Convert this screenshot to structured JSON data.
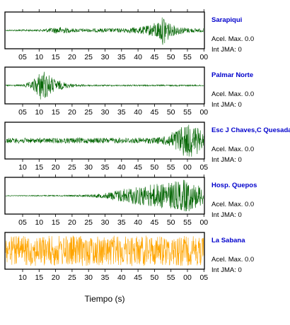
{
  "colors": {
    "trace_default": "#006400",
    "trace_last": "#ffa500",
    "station_name": "#0000cc",
    "frame": "#000000"
  },
  "chart_data": {
    "type": "line",
    "xlabel": "Tiempo (s)",
    "panels": [
      {
        "station": "Sarapiqui",
        "acel_label": "Acel. Max. 0.0",
        "int_label": "Int JMA: 0",
        "color": "#006400",
        "ticks_position": "bottom",
        "tick_labels": [
          "05",
          "10",
          "15",
          "20",
          "25",
          "30",
          "35",
          "40",
          "45",
          "50",
          "55",
          "00"
        ],
        "x": [
          0,
          5,
          10,
          15,
          16,
          20,
          25,
          30,
          35,
          40,
          43,
          45,
          47,
          48,
          49,
          50,
          55,
          60
        ],
        "amplitude": [
          0.03,
          0.05,
          0.05,
          0.18,
          0.22,
          0.12,
          0.1,
          0.12,
          0.12,
          0.2,
          0.28,
          0.45,
          0.65,
          1.0,
          0.7,
          0.35,
          0.15,
          0.1
        ]
      },
      {
        "station": "Palmar Norte",
        "acel_label": "Acel. Max. 0.0",
        "int_label": "Int JMA: 0",
        "color": "#006400",
        "ticks_position": "bottom",
        "tick_labels": [
          "05",
          "10",
          "15",
          "20",
          "25",
          "30",
          "35",
          "40",
          "45",
          "50",
          "55",
          "00"
        ],
        "x": [
          0,
          5,
          8,
          10,
          11,
          13,
          15,
          18,
          20,
          25,
          30,
          40,
          50,
          60
        ],
        "amplitude": [
          0.04,
          0.05,
          0.25,
          0.7,
          1.0,
          0.65,
          0.35,
          0.18,
          0.1,
          0.05,
          0.04,
          0.04,
          0.04,
          0.04
        ]
      },
      {
        "station": "Esc J Chaves,C Quesada",
        "acel_label": "Acel. Max. 0.0",
        "int_label": "Int JMA: 0",
        "color": "#006400",
        "ticks_position": "bottom",
        "tick_labels": [
          "10",
          "15",
          "20",
          "25",
          "30",
          "35",
          "40",
          "45",
          "50",
          "55",
          "00",
          "05"
        ],
        "x": [
          0,
          5,
          10,
          20,
          30,
          40,
          45,
          48,
          50,
          52,
          54,
          56,
          58,
          60
        ],
        "amplitude": [
          0.15,
          0.16,
          0.14,
          0.16,
          0.16,
          0.16,
          0.18,
          0.25,
          0.45,
          0.7,
          0.95,
          1.0,
          0.8,
          0.4
        ]
      },
      {
        "station": "Hosp. Quepos",
        "acel_label": "Acel. Max. 0.0",
        "int_label": "Int JMA: 0",
        "color": "#006400",
        "ticks_position": "both",
        "tick_labels": [
          "05",
          "10",
          "15",
          "20",
          "25",
          "30",
          "35",
          "40",
          "45",
          "50",
          "55",
          "00"
        ],
        "x": [
          0,
          5,
          10,
          15,
          20,
          25,
          30,
          35,
          40,
          45,
          50,
          53,
          55,
          57,
          60
        ],
        "amplitude": [
          0.02,
          0.02,
          0.03,
          0.03,
          0.04,
          0.08,
          0.15,
          0.4,
          0.55,
          0.7,
          0.8,
          0.9,
          1.0,
          0.75,
          0.55
        ]
      },
      {
        "station": "La Sabana",
        "acel_label": "Acel. Max. 0.0",
        "int_label": "Int JMA: 0",
        "color": "#ffa500",
        "ticks_position": "bottom",
        "tick_labels": [
          "10",
          "15",
          "20",
          "25",
          "30",
          "35",
          "40",
          "45",
          "50",
          "55",
          "00",
          "05"
        ],
        "x": [
          0,
          10,
          20,
          30,
          40,
          50,
          60
        ],
        "amplitude": [
          0.85,
          0.9,
          0.9,
          0.9,
          0.9,
          0.9,
          0.85
        ]
      }
    ]
  }
}
